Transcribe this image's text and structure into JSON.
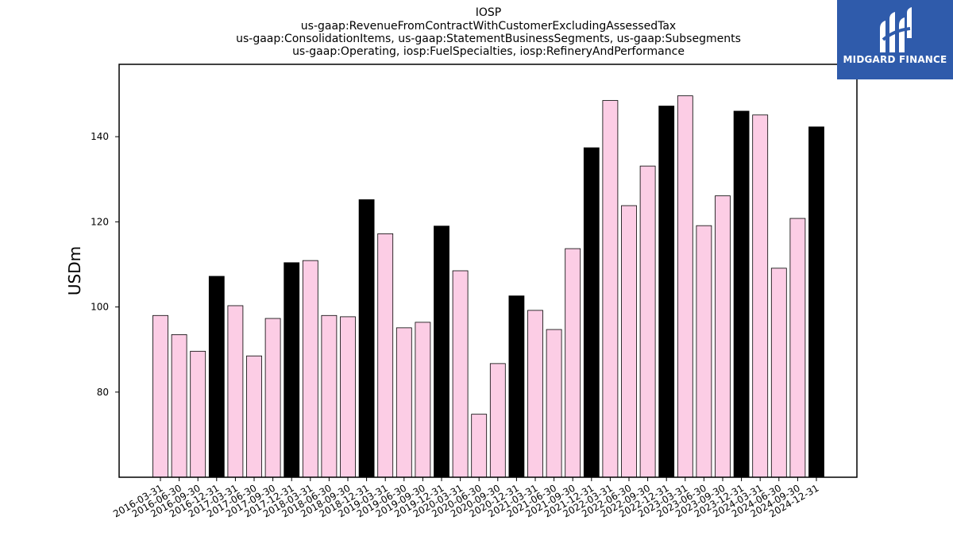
{
  "chart_data": {
    "type": "bar",
    "title_lines": [
      "IOSP",
      "us-gaap:RevenueFromContractWithCustomerExcludingAssessedTax",
      "us-gaap:ConsolidationItems, us-gaap:StatementBusinessSegments, us-gaap:Subsegments",
      "us-gaap:Operating, iosp:FuelSpecialties, iosp:RefineryAndPerformance"
    ],
    "ylabel": "USDm",
    "xlabel": "",
    "ylim": [
      60,
      157
    ],
    "yticks": [
      80,
      100,
      120,
      140
    ],
    "grid": false,
    "colors": {
      "quarter": "#fccde5",
      "year_end": "#000000",
      "edge": "#000000"
    },
    "categories": [
      "2016-03-31",
      "2016-06-30",
      "2016-09-30",
      "2016-12-31",
      "2017-03-31",
      "2017-06-30",
      "2017-09-30",
      "2017-12-31",
      "2018-03-31",
      "2018-06-30",
      "2018-09-30",
      "2018-12-31",
      "2019-03-31",
      "2019-06-30",
      "2019-09-30",
      "2019-12-31",
      "2020-03-31",
      "2020-06-30",
      "2020-09-30",
      "2020-12-31",
      "2021-03-31",
      "2021-06-30",
      "2021-09-30",
      "2021-12-31",
      "2022-03-31",
      "2022-06-30",
      "2022-09-30",
      "2022-12-31",
      "2023-03-31",
      "2023-06-30",
      "2023-09-30",
      "2023-12-31",
      "2024-03-31",
      "2024-06-30",
      "2024-09-30",
      "2024-12-31"
    ],
    "values": [
      98.0,
      93.5,
      89.6,
      107.2,
      100.3,
      88.5,
      97.3,
      110.4,
      110.9,
      98.0,
      97.7,
      125.2,
      117.2,
      95.1,
      96.4,
      119.0,
      108.5,
      74.8,
      86.7,
      102.6,
      99.2,
      94.7,
      113.7,
      137.4,
      148.5,
      123.8,
      133.1,
      147.2,
      149.6,
      119.1,
      126.1,
      146.0,
      145.1,
      109.1,
      120.8,
      142.3
    ],
    "year_end": [
      false,
      false,
      false,
      true,
      false,
      false,
      false,
      true,
      false,
      false,
      false,
      true,
      false,
      false,
      false,
      true,
      false,
      false,
      false,
      true,
      false,
      false,
      false,
      true,
      false,
      false,
      false,
      true,
      false,
      false,
      false,
      true,
      false,
      false,
      false,
      true
    ]
  },
  "logo": {
    "text": "MIDGARD FINANCE",
    "background": "#2f5bab"
  }
}
